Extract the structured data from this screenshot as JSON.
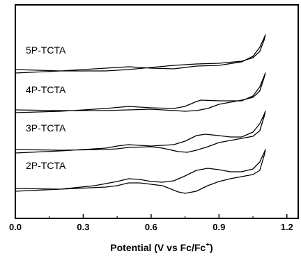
{
  "chart_data": {
    "type": "line",
    "xlabel": "Potential (V vs Fc/Fc",
    "xlabel_superscript": "+",
    "xlabel_close": ")",
    "ylabel": "",
    "xlim": [
      0.0,
      1.25
    ],
    "x_ticks": [
      {
        "value": 0.0,
        "label": "0.0"
      },
      {
        "value": 0.3,
        "label": "0.3"
      },
      {
        "value": 0.6,
        "label": "0.6"
      },
      {
        "value": 0.9,
        "label": "0.9"
      },
      {
        "value": 1.2,
        "label": "1.2"
      }
    ],
    "y_ticks_shown": false,
    "grid": false,
    "series": [
      {
        "name": "5P-TCTA",
        "forward": [
          [
            0.0,
            67
          ],
          [
            0.2,
            64
          ],
          [
            0.4,
            60
          ],
          [
            0.5,
            58
          ],
          [
            0.6,
            60
          ],
          [
            0.7,
            61
          ],
          [
            0.8,
            57
          ],
          [
            0.9,
            56
          ],
          [
            1.0,
            51
          ],
          [
            1.05,
            43
          ],
          [
            1.08,
            30
          ],
          [
            1.1,
            16
          ],
          [
            1.105,
            12
          ]
        ],
        "reverse": [
          [
            1.105,
            12
          ],
          [
            1.1,
            19
          ],
          [
            1.08,
            36
          ],
          [
            1.05,
            45
          ],
          [
            1.0,
            50
          ],
          [
            0.9,
            53
          ],
          [
            0.8,
            54
          ],
          [
            0.75,
            55
          ],
          [
            0.7,
            56
          ],
          [
            0.6,
            59
          ],
          [
            0.5,
            62
          ],
          [
            0.4,
            64
          ],
          [
            0.2,
            64
          ],
          [
            0.0,
            62
          ]
        ]
      },
      {
        "name": "4P-TCTA",
        "forward": [
          [
            0.0,
            67
          ],
          [
            0.2,
            65
          ],
          [
            0.4,
            61
          ],
          [
            0.5,
            58
          ],
          [
            0.6,
            60
          ],
          [
            0.7,
            61
          ],
          [
            0.75,
            58
          ],
          [
            0.8,
            51
          ],
          [
            0.82,
            49
          ],
          [
            0.9,
            50
          ],
          [
            1.0,
            50
          ],
          [
            1.05,
            43
          ],
          [
            1.08,
            30
          ],
          [
            1.1,
            14
          ],
          [
            1.105,
            10
          ]
        ],
        "reverse": [
          [
            1.105,
            10
          ],
          [
            1.1,
            16
          ],
          [
            1.08,
            36
          ],
          [
            1.05,
            45
          ],
          [
            1.0,
            49
          ],
          [
            0.9,
            55
          ],
          [
            0.85,
            61
          ],
          [
            0.8,
            64
          ],
          [
            0.75,
            65
          ],
          [
            0.7,
            64
          ],
          [
            0.6,
            62
          ],
          [
            0.5,
            63
          ],
          [
            0.4,
            64
          ],
          [
            0.2,
            64
          ],
          [
            0.0,
            63
          ]
        ]
      },
      {
        "name": "3P-TCTA",
        "forward": [
          [
            0.0,
            70
          ],
          [
            0.2,
            67
          ],
          [
            0.4,
            63
          ],
          [
            0.45,
            60
          ],
          [
            0.5,
            58
          ],
          [
            0.55,
            59
          ],
          [
            0.6,
            60
          ],
          [
            0.65,
            59
          ],
          [
            0.7,
            58
          ],
          [
            0.75,
            53
          ],
          [
            0.8,
            45
          ],
          [
            0.84,
            43
          ],
          [
            0.9,
            45
          ],
          [
            0.95,
            47
          ],
          [
            1.0,
            47
          ],
          [
            1.05,
            40
          ],
          [
            1.08,
            28
          ],
          [
            1.1,
            14
          ],
          [
            1.105,
            10
          ]
        ],
        "reverse": [
          [
            1.105,
            10
          ],
          [
            1.1,
            17
          ],
          [
            1.08,
            38
          ],
          [
            1.05,
            46
          ],
          [
            1.0,
            49
          ],
          [
            0.9,
            55
          ],
          [
            0.85,
            61
          ],
          [
            0.8,
            66
          ],
          [
            0.76,
            69
          ],
          [
            0.72,
            68
          ],
          [
            0.65,
            63
          ],
          [
            0.6,
            61
          ],
          [
            0.5,
            62
          ],
          [
            0.45,
            64
          ],
          [
            0.4,
            65
          ],
          [
            0.2,
            66
          ],
          [
            0.0,
            65
          ]
        ]
      },
      {
        "name": "2P-TCTA",
        "forward": [
          [
            0.0,
            70
          ],
          [
            0.2,
            67
          ],
          [
            0.35,
            62
          ],
          [
            0.45,
            56
          ],
          [
            0.5,
            52
          ],
          [
            0.55,
            53
          ],
          [
            0.6,
            56
          ],
          [
            0.65,
            57
          ],
          [
            0.7,
            55
          ],
          [
            0.75,
            48
          ],
          [
            0.8,
            40
          ],
          [
            0.85,
            37
          ],
          [
            0.9,
            39
          ],
          [
            0.95,
            42
          ],
          [
            1.0,
            42
          ],
          [
            1.05,
            38
          ],
          [
            1.08,
            28
          ],
          [
            1.1,
            14
          ],
          [
            1.105,
            10
          ]
        ],
        "reverse": [
          [
            1.105,
            10
          ],
          [
            1.1,
            18
          ],
          [
            1.08,
            40
          ],
          [
            1.05,
            46
          ],
          [
            1.0,
            49
          ],
          [
            0.95,
            52
          ],
          [
            0.9,
            56
          ],
          [
            0.85,
            62
          ],
          [
            0.8,
            70
          ],
          [
            0.75,
            73
          ],
          [
            0.72,
            71
          ],
          [
            0.65,
            62
          ],
          [
            0.55,
            58
          ],
          [
            0.5,
            58
          ],
          [
            0.45,
            62
          ],
          [
            0.4,
            64
          ],
          [
            0.2,
            67
          ],
          [
            0.0,
            66
          ]
        ]
      }
    ]
  }
}
